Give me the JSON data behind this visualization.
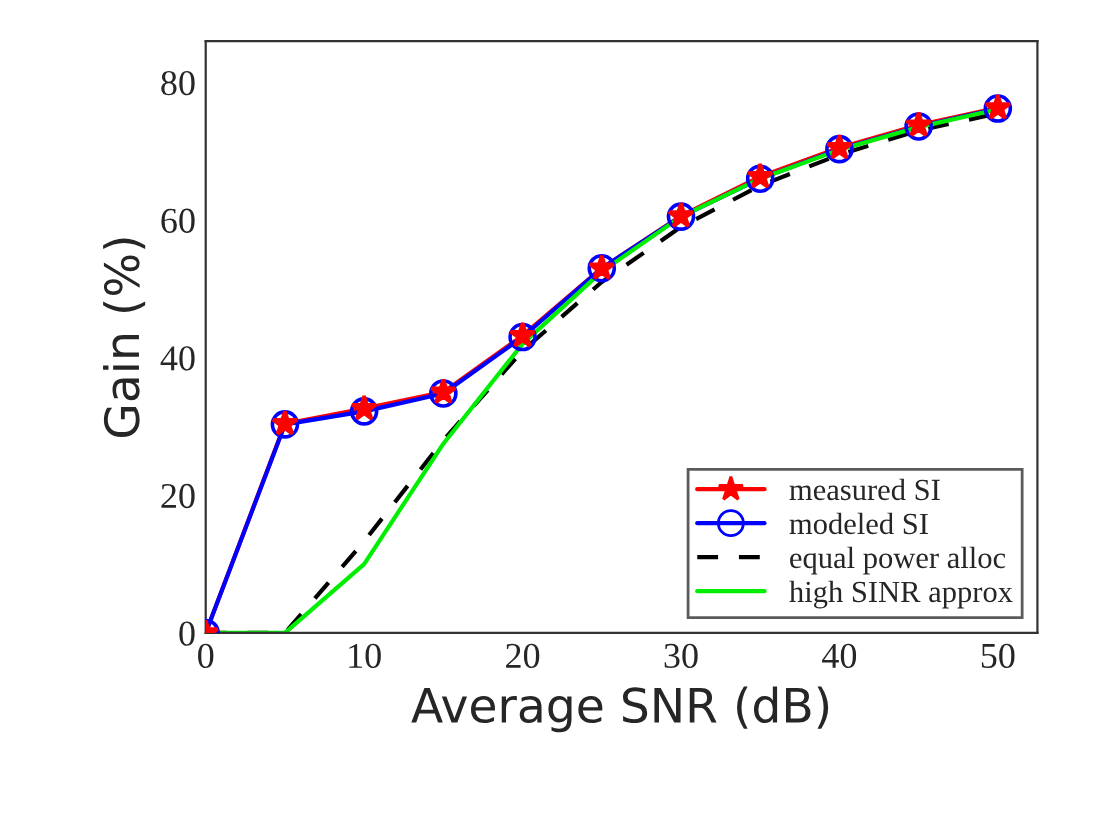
{
  "chart_data": {
    "type": "line",
    "xlabel": "Average SNR (dB)",
    "ylabel": "Gain (%)",
    "x": [
      0,
      5,
      10,
      15,
      20,
      25,
      30,
      35,
      40,
      45,
      50
    ],
    "series": [
      {
        "name": "measured SI",
        "color": "#ff0000",
        "marker": "star",
        "line_style": "solid",
        "values": [
          0,
          30.4,
          32.6,
          35,
          43.2,
          53,
          60.6,
          66.3,
          70.5,
          73.8,
          76.3
        ]
      },
      {
        "name": "modeled SI",
        "color": "#0000ff",
        "marker": "circle",
        "line_style": "solid",
        "values": [
          0,
          30.3,
          32.2,
          34.8,
          43,
          53,
          60.5,
          66,
          70.3,
          73.6,
          76.2
        ]
      },
      {
        "name": "equal power alloc",
        "color": "#000000",
        "marker": "none",
        "line_style": "dashed",
        "values": [
          0,
          0,
          13.3,
          28,
          41,
          51,
          59,
          65,
          69.5,
          73,
          75.5
        ]
      },
      {
        "name": "high SINR approx",
        "color": "#00ee00",
        "marker": "none",
        "line_style": "solid",
        "values": [
          0,
          0,
          10,
          27.5,
          42,
          52.5,
          60.5,
          66,
          70.2,
          73.5,
          76.1
        ]
      }
    ],
    "xlim": [
      0,
      52.5
    ],
    "ylim": [
      0,
      86
    ],
    "xticks": [
      0,
      10,
      20,
      30,
      40,
      50
    ],
    "yticks": [
      0,
      20,
      40,
      60,
      80
    ],
    "grid": false,
    "legend": "bottom right"
  }
}
